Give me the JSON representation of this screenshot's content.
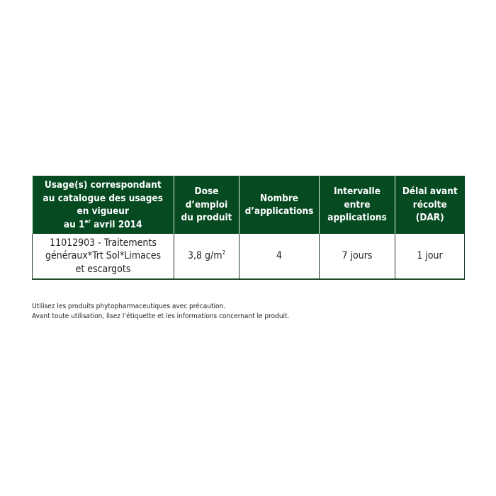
{
  "table": {
    "headers": [
      {
        "lines": [
          "Usage(s) correspondant",
          "au catalogue des usages",
          "en vigueur"
        ],
        "last_prefix": "au 1",
        "last_sup": "er",
        "last_suffix": " avril 2014"
      },
      {
        "lines": [
          "Dose",
          "d’emploi",
          "du produit"
        ]
      },
      {
        "lines": [
          "Nombre",
          "d’applications"
        ]
      },
      {
        "lines": [
          "Intervalle",
          "entre",
          "applications"
        ]
      },
      {
        "lines": [
          "Délai avant",
          "récolte",
          "(DAR)"
        ]
      }
    ],
    "row": {
      "usage_lines": [
        "11012903 - Traitements",
        "généraux*Trt Sol*Limaces",
        "et escargots"
      ],
      "dose": "3,8 g/m",
      "dose_sup": "2",
      "applications": "4",
      "interval": "7 jours",
      "dar": "1 jour"
    }
  },
  "notes": [
    "Utilisez les produits phytopharmaceutiques avec précaution.",
    "Avant toute utilisation, lisez l’étiquette et les informations concernant le produit."
  ],
  "colors": {
    "header_bg": "#064a22",
    "header_text": "#ffffff"
  }
}
